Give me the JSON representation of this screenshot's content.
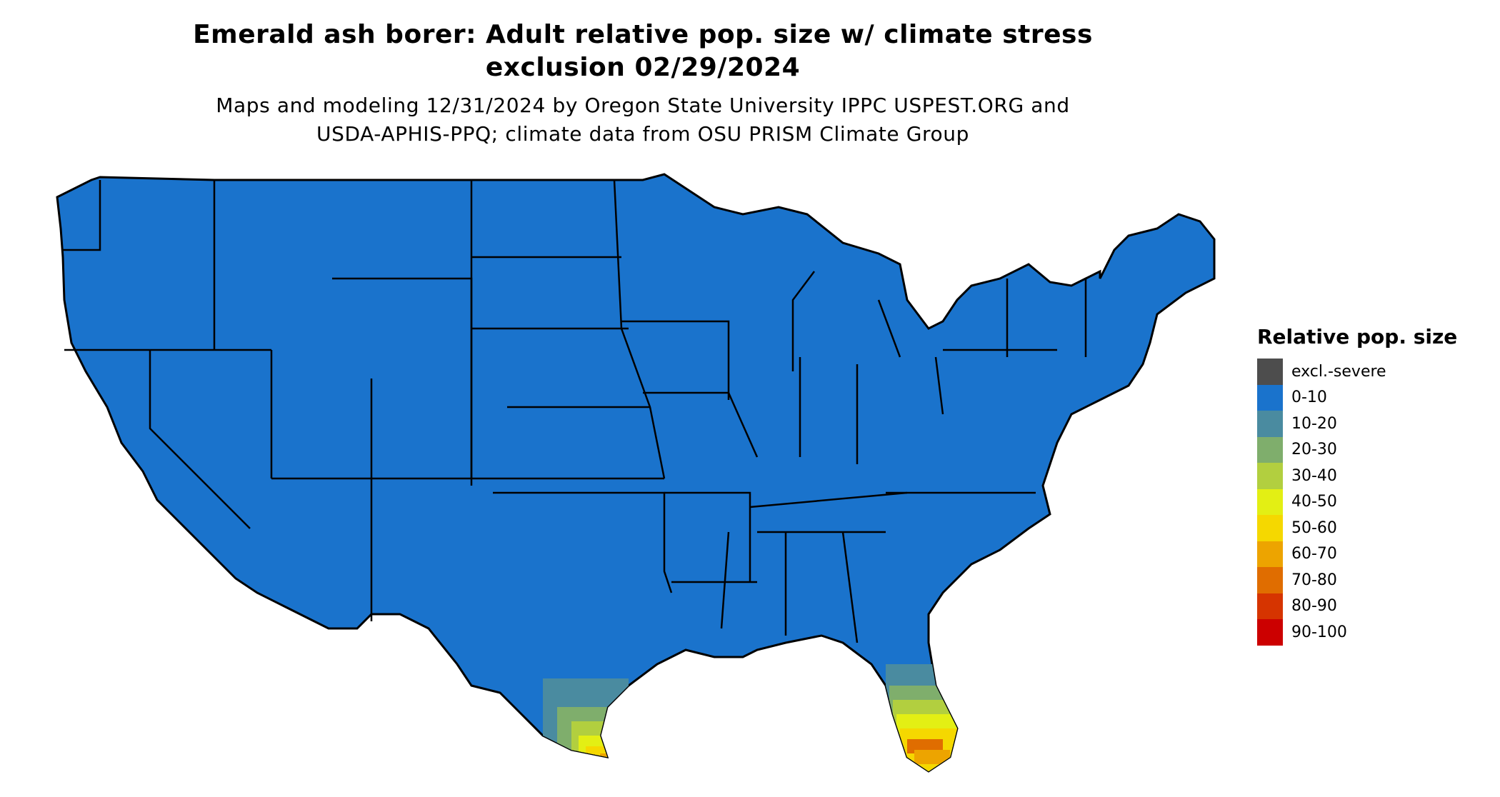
{
  "title_lines": [
    "Emerald ash borer: Adult relative pop. size w/ climate stress",
    "exclusion 02/29/2024"
  ],
  "subtitle_lines": [
    "Maps and modeling 12/31/2024 by Oregon State University IPPC USPEST.ORG and",
    "USDA-APHIS-PPQ; climate data from OSU PRISM Climate Group"
  ],
  "map": {
    "region": "Contiguous United States",
    "base_category": "0-10",
    "base_color": "#1a73cc",
    "border_color": "#000000"
  },
  "legend": {
    "title": "Relative pop. size",
    "items": [
      {
        "label": "excl.-severe",
        "color": "#4d4d4d"
      },
      {
        "label": "0-10",
        "color": "#1a73cc"
      },
      {
        "label": "10-20",
        "color": "#4a8ba0"
      },
      {
        "label": "20-30",
        "color": "#7fae6c"
      },
      {
        "label": "30-40",
        "color": "#b2cf3f"
      },
      {
        "label": "40-50",
        "color": "#e3ef14"
      },
      {
        "label": "50-60",
        "color": "#f5d800"
      },
      {
        "label": "60-70",
        "color": "#eda400"
      },
      {
        "label": "70-80",
        "color": "#e06d00"
      },
      {
        "label": "80-90",
        "color": "#d63400"
      },
      {
        "label": "90-100",
        "color": "#cc0000"
      }
    ]
  }
}
